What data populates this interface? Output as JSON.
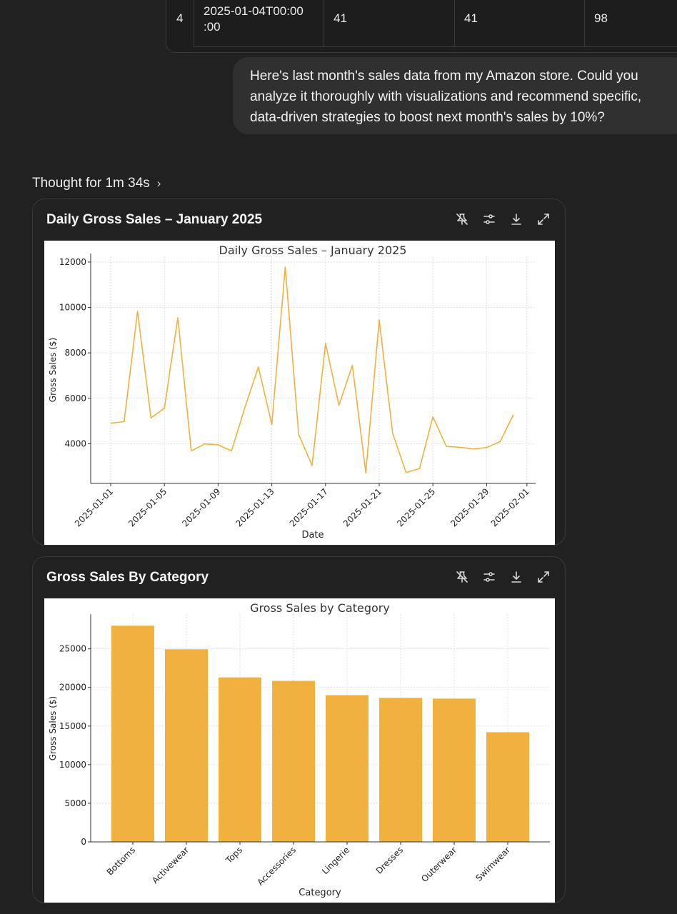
{
  "table_row": {
    "index": "4",
    "date_line1": "2025-01-04T00:00",
    "date_line2": ":00",
    "col3": "41",
    "col4": "41",
    "col5": "98"
  },
  "user_message": {
    "line1": "Here's last month's sales data from my Amazon store. Could you",
    "line2": "analyze it thoroughly with visualizations and recommend specific,",
    "line3": "data-driven strategies to boost next month's sales by 10%?"
  },
  "thought": {
    "label": "Thought for 1m 34s",
    "chevron": "›"
  },
  "cards": [
    {
      "title": "Daily Gross Sales – January 2025"
    },
    {
      "title": "Gross Sales By Category"
    }
  ],
  "tool_icons": [
    "pin-off-icon",
    "sliders-icon",
    "download-icon",
    "expand-icon"
  ],
  "colors": {
    "series": "#f0b13f",
    "background": "#212121"
  },
  "chart_data": [
    {
      "type": "line",
      "title": "Daily Gross Sales – January 2025",
      "xlabel": "Date",
      "ylabel": "Gross Sales ($)",
      "x": [
        "2025-01-01",
        "2025-01-02",
        "2025-01-03",
        "2025-01-04",
        "2025-01-05",
        "2025-01-06",
        "2025-01-07",
        "2025-01-08",
        "2025-01-09",
        "2025-01-10",
        "2025-01-11",
        "2025-01-12",
        "2025-01-13",
        "2025-01-14",
        "2025-01-15",
        "2025-01-16",
        "2025-01-17",
        "2025-01-18",
        "2025-01-19",
        "2025-01-20",
        "2025-01-21",
        "2025-01-22",
        "2025-01-23",
        "2025-01-24",
        "2025-01-25",
        "2025-01-26",
        "2025-01-27",
        "2025-01-28",
        "2025-01-29",
        "2025-01-30",
        "2025-01-31"
      ],
      "values": [
        4900,
        4970,
        9830,
        5130,
        5560,
        9550,
        3680,
        3990,
        3950,
        3680,
        5600,
        7380,
        4850,
        11780,
        4400,
        3050,
        8420,
        5690,
        7450,
        2720,
        9450,
        4460,
        2730,
        2900,
        5180,
        3880,
        3840,
        3770,
        3830,
        4090,
        5280
      ],
      "xticks": [
        "2025-01-01",
        "2025-01-05",
        "2025-01-09",
        "2025-01-13",
        "2025-01-17",
        "2025-01-21",
        "2025-01-25",
        "2025-01-29",
        "2025-02-01"
      ],
      "yticks": [
        4000,
        6000,
        8000,
        10000,
        12000
      ],
      "ylim": [
        2250,
        12250
      ],
      "grid": true
    },
    {
      "type": "bar",
      "title": "Gross Sales by Category",
      "xlabel": "Category",
      "ylabel": "Gross Sales ($)",
      "categories": [
        "Bottoms",
        "Activewear",
        "Tops",
        "Accessories",
        "Lingerie",
        "Dresses",
        "Outerwear",
        "Swimwear"
      ],
      "values": [
        28000,
        24950,
        21300,
        20850,
        19000,
        18650,
        18550,
        14200
      ],
      "yticks": [
        0,
        5000,
        10000,
        15000,
        20000,
        25000
      ],
      "ylim": [
        0,
        29500
      ],
      "grid": true
    }
  ]
}
